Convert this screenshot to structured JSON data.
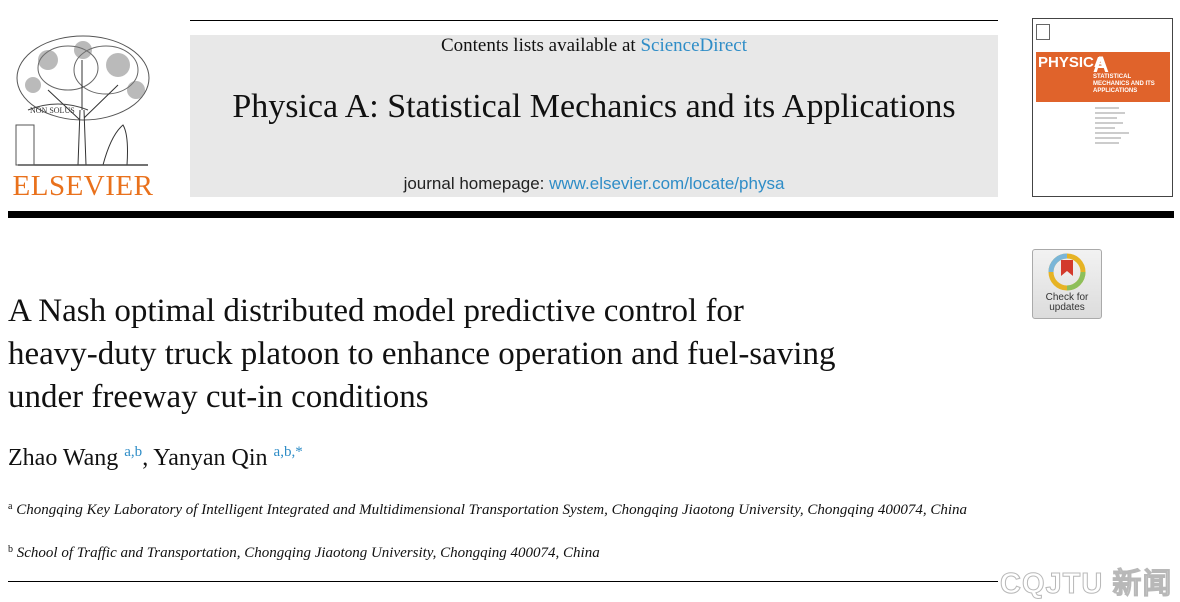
{
  "header": {
    "contents_prefix": "Contents lists available at ",
    "contents_link": "ScienceDirect",
    "journal_title": "Physica A: Statistical Mechanics and its Applications",
    "homepage_prefix": "journal homepage: ",
    "homepage_url": "www.elsevier.com/locate/physa",
    "publisher": "ELSEVIER",
    "publisher_motto": "NON SOLUS"
  },
  "cover": {
    "journal_word": "PHYSICA",
    "journal_letter": "A",
    "subtitle": "STATISTICAL MECHANICS AND ITS APPLICATIONS",
    "brand_color": "#e0632b"
  },
  "badge": {
    "label_line1": "Check for",
    "label_line2": "updates"
  },
  "article": {
    "title_line1": "A Nash optimal distributed model predictive control for",
    "title_line2": "heavy-duty truck platoon to enhance operation and fuel-saving",
    "title_line3": "under freeway cut-in conditions",
    "authors": [
      {
        "name": "Zhao Wang",
        "marks": "a,b"
      },
      {
        "name": "Yanyan Qin",
        "marks": "a,b,*"
      }
    ],
    "author_separator": ", ",
    "affiliations": [
      {
        "mark": "a",
        "text": "Chongqing Key Laboratory of Intelligent Integrated and Multidimensional Transportation System, Chongqing Jiaotong University, Chongqing 400074, China"
      },
      {
        "mark": "b",
        "text": "School of Traffic and Transportation, Chongqing Jiaotong University, Chongqing 400074, China"
      }
    ]
  },
  "watermark": "CQJTU 新闻",
  "colors": {
    "link": "#2f8dc7",
    "elsevier_orange": "#e9711c"
  }
}
